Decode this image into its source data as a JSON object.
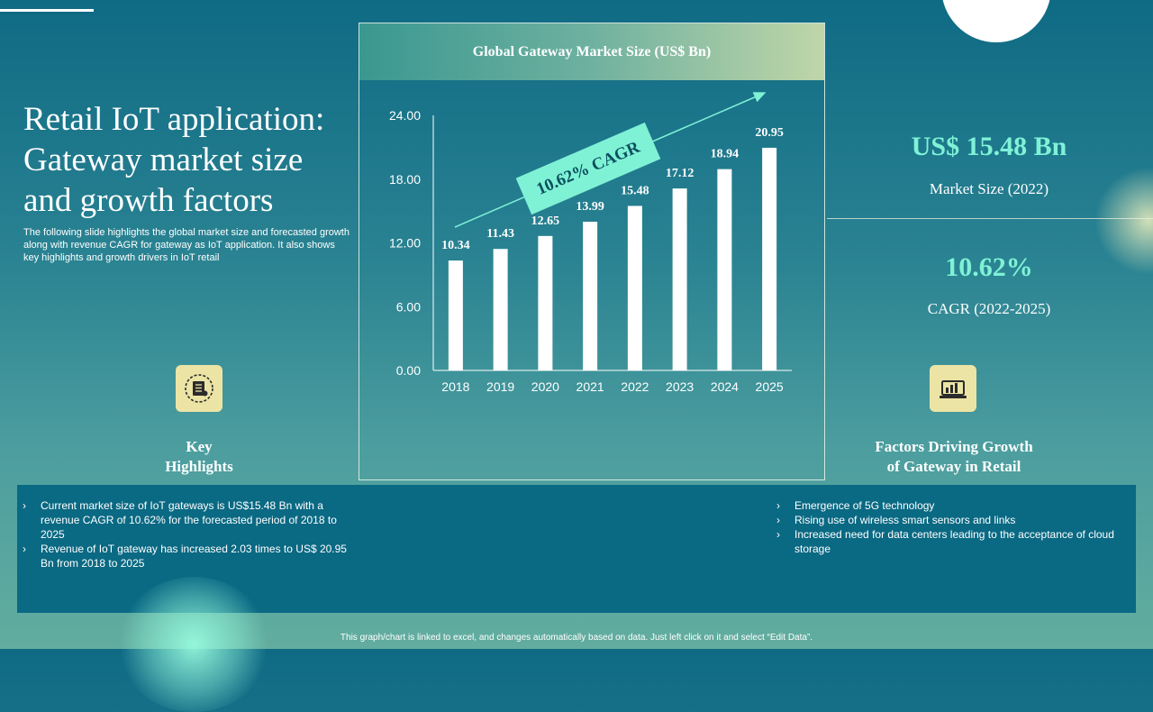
{
  "title": "Retail IoT application: Gateway market size and growth factors",
  "subtitle": "The following slide highlights the global market size and forecasted growth along with revenue CAGR for gateway as IoT application. It also shows key highlights and growth drivers in IoT retail",
  "chart_data": {
    "type": "bar",
    "title": "Global Gateway Market Size (US$ Bn)",
    "categories": [
      "2018",
      "2019",
      "2020",
      "2021",
      "2022",
      "2023",
      "2024",
      "2025"
    ],
    "values": [
      10.34,
      11.43,
      12.65,
      13.99,
      15.48,
      17.12,
      18.94,
      20.95
    ],
    "data_labels": [
      "10.34",
      "11.43",
      "12.65",
      "13.99",
      "15.48",
      "17.12",
      "18.94",
      "20.95"
    ],
    "y_ticks": [
      "0.00",
      "6.00",
      "12.00",
      "18.00",
      "24.00"
    ],
    "ylim": [
      0,
      24
    ],
    "xlabel": "",
    "ylabel": "",
    "annotation": "10.62% CAGR",
    "bar_color": "#ffffff",
    "annotation_color": "#7ff2d6"
  },
  "metrics": {
    "market_size_value": "US$ 15.48 Bn",
    "market_size_label": "Market Size (2022)",
    "cagr_value": "10.62%",
    "cagr_label": "CAGR (2022-2025)"
  },
  "key_highlights": {
    "heading_line1": "Key",
    "heading_line2": "Highlights",
    "icon": "document-list-icon",
    "items": [
      "Current market size of IoT gateways is US$15.48 Bn with a revenue CAGR of 10.62% for the forecasted period of 2018 to 2025",
      "Revenue of IoT gateway has increased 2.03 times to US$ 20.95 Bn from 2018 to 2025"
    ]
  },
  "growth_factors": {
    "heading_line1": "Factors Driving Growth",
    "heading_line2": "of Gateway in Retail",
    "icon": "laptop-chart-icon",
    "items": [
      "Emergence of 5G technology",
      "Rising use of wireless smart sensors and links",
      "Increased need for data centers leading to the acceptance of cloud storage"
    ]
  },
  "footer_note": "This graph/chart is linked to excel, and changes automatically based on data. Just left click on it and select “Edit Data”.",
  "colors": {
    "accent": "#7ff2d6",
    "icon_bg": "#ece4a5",
    "panel_bg": "#0a6983"
  }
}
